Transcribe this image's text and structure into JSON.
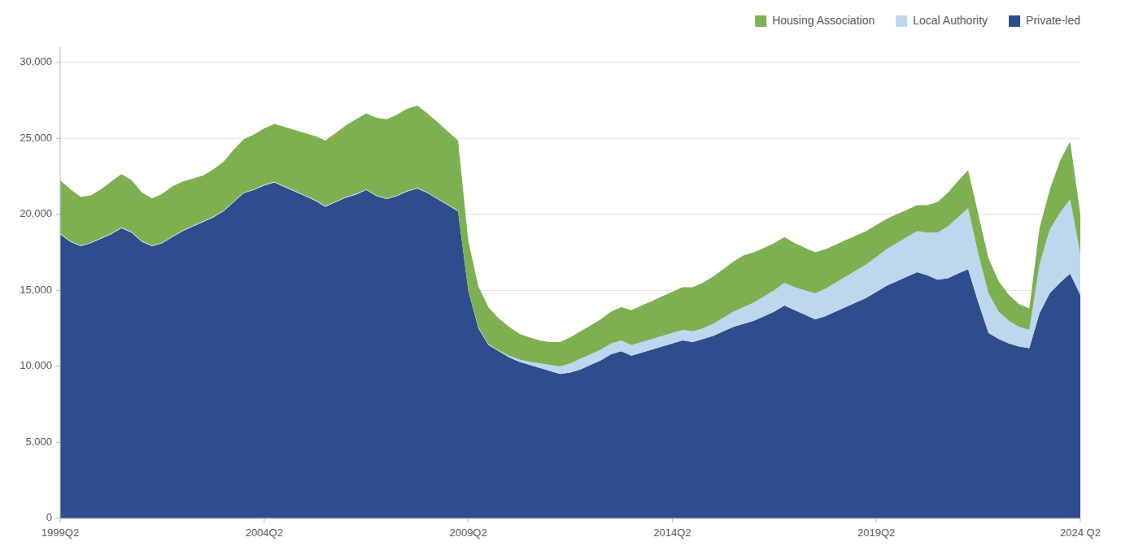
{
  "chart_data": {
    "type": "area",
    "stacked": true,
    "grid": true,
    "legend": "upper right",
    "categories": [
      "1999Q2",
      null,
      null,
      null,
      null,
      null,
      null,
      null,
      null,
      null,
      null,
      null,
      null,
      null,
      null,
      null,
      null,
      null,
      null,
      null,
      "2004Q2",
      null,
      null,
      null,
      null,
      null,
      null,
      null,
      null,
      null,
      null,
      null,
      null,
      null,
      null,
      null,
      null,
      null,
      null,
      null,
      "2009Q2",
      null,
      null,
      null,
      null,
      null,
      null,
      null,
      null,
      null,
      null,
      null,
      null,
      null,
      null,
      null,
      null,
      null,
      null,
      null,
      "2014Q2",
      null,
      null,
      null,
      null,
      null,
      null,
      null,
      null,
      null,
      null,
      null,
      null,
      null,
      null,
      null,
      null,
      null,
      null,
      null,
      "2019Q2",
      null,
      null,
      null,
      null,
      null,
      null,
      null,
      null,
      null,
      null,
      null,
      null,
      null,
      null,
      null,
      null,
      null,
      null,
      null,
      "2024 Q2"
    ],
    "series": [
      {
        "name": "Private-led",
        "color": "#2E4D8C",
        "values": [
          18700,
          18200,
          17900,
          18100,
          18400,
          18700,
          19100,
          18800,
          18200,
          17900,
          18100,
          18500,
          18900,
          19200,
          19500,
          19800,
          20200,
          20800,
          21400,
          21600,
          21900,
          22100,
          21800,
          21500,
          21200,
          20900,
          20500,
          20800,
          21100,
          21300,
          21600,
          21200,
          21000,
          21200,
          21500,
          21700,
          21400,
          21000,
          20600,
          20200,
          15000,
          12500,
          11400,
          11000,
          10600,
          10300,
          10100,
          9900,
          9700,
          9500,
          9600,
          9800,
          10100,
          10400,
          10800,
          11000,
          10700,
          10900,
          11100,
          11300,
          11500,
          11700,
          11600,
          11800,
          12000,
          12300,
          12600,
          12800,
          13000,
          13300,
          13600,
          14000,
          13700,
          13400,
          13100,
          13300,
          13600,
          13900,
          14200,
          14500,
          14900,
          15300,
          15600,
          15900,
          16200,
          16000,
          15700,
          15800,
          16100,
          16400,
          14200,
          12200,
          11800,
          11500,
          11300,
          11200,
          13500,
          14800,
          15500,
          16100,
          14700
        ]
      },
      {
        "name": "Local Authority",
        "color": "#BDD7EE",
        "values": [
          50,
          50,
          50,
          50,
          50,
          50,
          50,
          50,
          50,
          50,
          50,
          50,
          50,
          50,
          50,
          50,
          50,
          50,
          50,
          50,
          50,
          50,
          50,
          50,
          50,
          50,
          50,
          50,
          50,
          50,
          50,
          50,
          50,
          50,
          50,
          50,
          50,
          50,
          50,
          50,
          50,
          50,
          50,
          50,
          100,
          150,
          200,
          300,
          400,
          500,
          600,
          700,
          700,
          700,
          700,
          700,
          700,
          700,
          700,
          700,
          700,
          700,
          700,
          700,
          800,
          900,
          1000,
          1100,
          1200,
          1300,
          1400,
          1500,
          1500,
          1600,
          1700,
          1800,
          1900,
          2000,
          2100,
          2200,
          2300,
          2400,
          2500,
          2600,
          2700,
          2800,
          3100,
          3400,
          3700,
          4000,
          3200,
          2600,
          1800,
          1500,
          1300,
          1200,
          3200,
          4200,
          4600,
          4900,
          2700
        ]
      },
      {
        "name": "Housing Association",
        "color": "#7DB050",
        "values": [
          3500,
          3400,
          3200,
          3100,
          3200,
          3400,
          3500,
          3400,
          3200,
          3100,
          3200,
          3300,
          3200,
          3100,
          3000,
          3100,
          3200,
          3400,
          3500,
          3600,
          3700,
          3800,
          3900,
          4000,
          4100,
          4200,
          4300,
          4500,
          4700,
          4900,
          5000,
          5100,
          5200,
          5300,
          5400,
          5400,
          5200,
          5000,
          4800,
          4600,
          3200,
          2700,
          2400,
          2100,
          1900,
          1700,
          1600,
          1500,
          1500,
          1600,
          1700,
          1800,
          1900,
          2000,
          2100,
          2200,
          2300,
          2400,
          2500,
          2600,
          2700,
          2800,
          2900,
          3000,
          3100,
          3200,
          3300,
          3400,
          3300,
          3200,
          3100,
          3000,
          2900,
          2800,
          2700,
          2600,
          2500,
          2400,
          2300,
          2200,
          2100,
          2000,
          1900,
          1800,
          1700,
          1800,
          2000,
          2200,
          2400,
          2500,
          2600,
          2300,
          2000,
          1700,
          1500,
          1400,
          2400,
          2600,
          3400,
          3800,
          2600
        ]
      }
    ],
    "ylim": [
      0,
      31000
    ],
    "yticks": [
      0,
      {
        "value": 5000,
        "label": "5,000"
      },
      {
        "value": 10000,
        "label": "10,000"
      },
      {
        "value": 15000,
        "label": "15,000"
      },
      {
        "value": 20000,
        "label": "20,000"
      },
      {
        "value": 25000,
        "label": "25,000"
      },
      {
        "value": 30000,
        "label": "30,000"
      }
    ]
  }
}
